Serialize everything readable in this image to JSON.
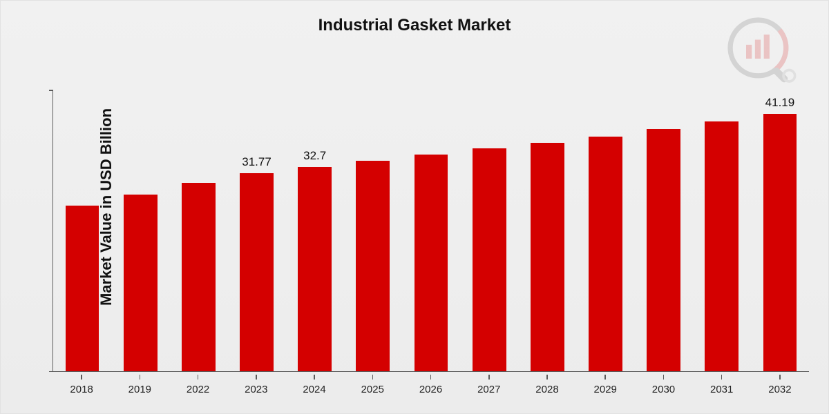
{
  "chart": {
    "type": "bar",
    "title": "Industrial Gasket Market",
    "title_fontsize": 24,
    "ylabel": "Market Value in USD Billion",
    "ylabel_fontsize": 22,
    "background_gradient": [
      "#f1f1f1",
      "#ececec"
    ],
    "axis_color": "#5a5a5a",
    "bar_color": "#d40000",
    "bar_width_ratio": 0.58,
    "ylim": [
      0,
      45
    ],
    "label_fontsize": 17,
    "xtick_fontsize": 15,
    "categories": [
      "2018",
      "2019",
      "2022",
      "2023",
      "2024",
      "2025",
      "2026",
      "2027",
      "2028",
      "2029",
      "2030",
      "2031",
      "2032"
    ],
    "values": [
      26.5,
      28.3,
      30.2,
      31.77,
      32.7,
      33.7,
      34.7,
      35.7,
      36.6,
      37.6,
      38.8,
      40.0,
      41.19
    ],
    "data_labels": {
      "3": "31.77",
      "4": "32.7",
      "12": "41.19"
    },
    "logo_opacity": 0.18,
    "logo_colors": {
      "ring": "#555555",
      "bars": "#d40000",
      "handle": "#555555",
      "lens": "#999999"
    }
  }
}
